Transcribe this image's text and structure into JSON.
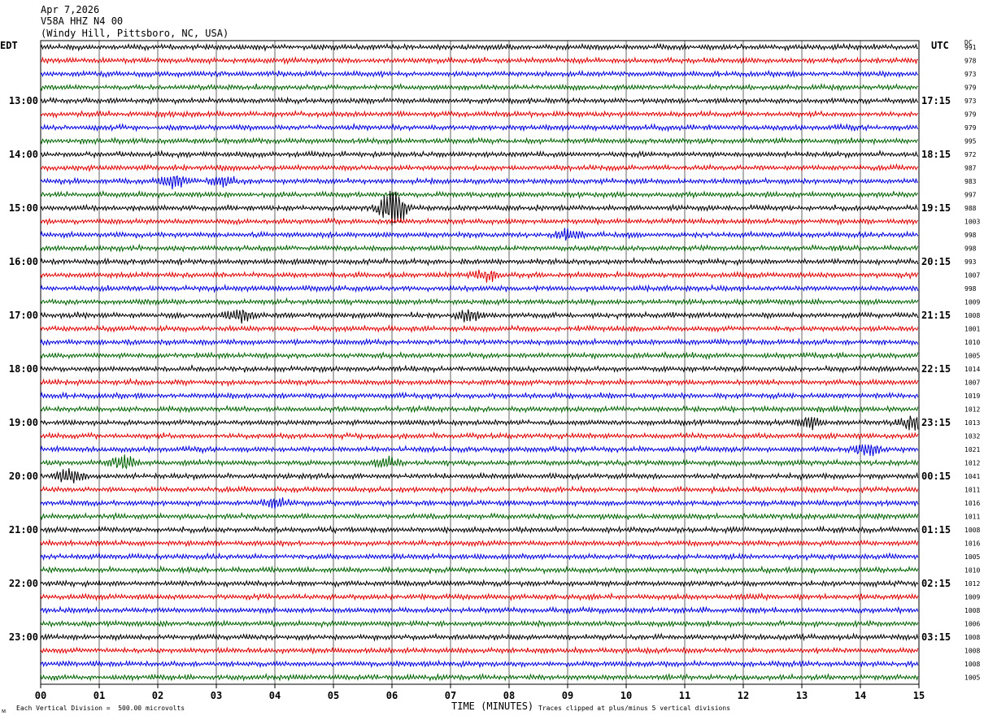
{
  "header": {
    "date": "Apr 7,2026",
    "station": "V58A HHZ N4 00",
    "location": "(Windy Hill, Pittsboro, NC, USA)"
  },
  "left_axis_label": "EDT",
  "right_axis_label": "UTC",
  "dc_label": "DC",
  "footer": {
    "scale_note": "Each Vertical Division =  500.00 microvolts",
    "xlabel": "TIME (MINUTES)",
    "clip_note": "Traces clipped at plus/minus 5 vertical divisions",
    "corner_mark": "ᴍ"
  },
  "colors": {
    "cycle": [
      "#000000",
      "#e00000",
      "#0000e0",
      "#006400"
    ]
  },
  "chart_data": {
    "type": "line",
    "title": "V58A HHZ N4 00",
    "xlabel": "TIME (MINUTES)",
    "xlim": [
      0,
      15
    ],
    "x_ticks": [
      "00",
      "01",
      "02",
      "03",
      "04",
      "05",
      "06",
      "07",
      "08",
      "09",
      "10",
      "11",
      "12",
      "13",
      "14",
      "15"
    ],
    "traces_per_hour": 4,
    "minutes_per_trace": 15,
    "edt_hour_labels": [
      "13:00",
      "14:00",
      "15:00",
      "16:00",
      "17:00",
      "18:00",
      "19:00",
      "20:00",
      "21:00",
      "22:00",
      "23:00"
    ],
    "utc_hour_labels": [
      "17:15",
      "18:15",
      "19:15",
      "20:15",
      "21:15",
      "22:15",
      "23:15",
      "00:15",
      "01:15",
      "02:15",
      "03:15"
    ],
    "dc_values": [
      991,
      978,
      973,
      979,
      973,
      979,
      979,
      995,
      972,
      987,
      983,
      997,
      988,
      1003,
      998,
      998,
      993,
      1007,
      998,
      1009,
      1008,
      1001,
      1010,
      1005,
      1014,
      1007,
      1019,
      1012,
      1013,
      1032,
      1021,
      1012,
      1041,
      1011,
      1016,
      1011,
      1008,
      1016,
      1005,
      1010,
      1012,
      1009,
      1008,
      1006,
      1008,
      1008,
      1008,
      1005
    ],
    "events": [
      {
        "trace": 10,
        "minute": 2.3,
        "amp": 1.6
      },
      {
        "trace": 10,
        "minute": 3.1,
        "amp": 1.3
      },
      {
        "trace": 12,
        "minute": 6.0,
        "amp": 4.5
      },
      {
        "trace": 14,
        "minute": 9.0,
        "amp": 1.2
      },
      {
        "trace": 17,
        "minute": 7.6,
        "amp": 1.3
      },
      {
        "trace": 20,
        "minute": 3.4,
        "amp": 1.4
      },
      {
        "trace": 20,
        "minute": 7.3,
        "amp": 1.2
      },
      {
        "trace": 28,
        "minute": 14.9,
        "amp": 1.6
      },
      {
        "trace": 28,
        "minute": 13.1,
        "amp": 1.2
      },
      {
        "trace": 30,
        "minute": 14.1,
        "amp": 1.3
      },
      {
        "trace": 31,
        "minute": 1.4,
        "amp": 1.5
      },
      {
        "trace": 31,
        "minute": 5.9,
        "amp": 1.2
      },
      {
        "trace": 32,
        "minute": 0.5,
        "amp": 1.8
      },
      {
        "trace": 34,
        "minute": 4.0,
        "amp": 1.0
      }
    ]
  }
}
